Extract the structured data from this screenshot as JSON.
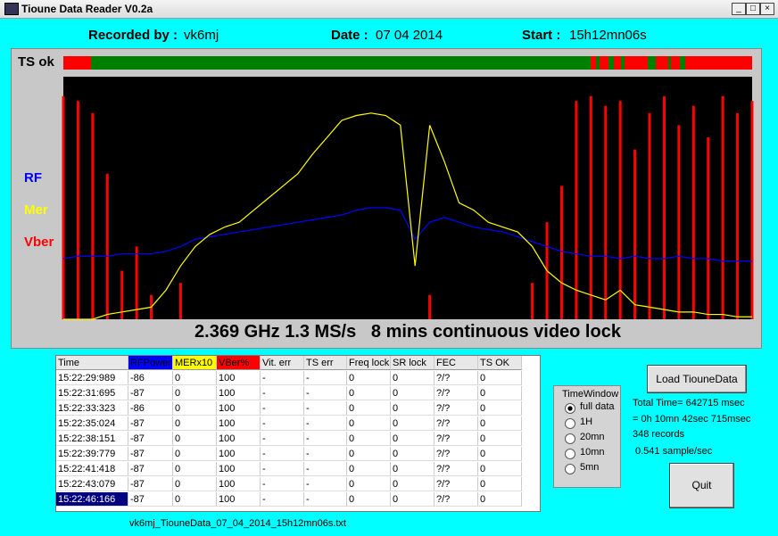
{
  "window": {
    "title": "Tioune Data Reader V0.2a"
  },
  "header": {
    "recorded_by_label": "Recorded by :",
    "recorded_by": "vk6mj",
    "date_label": "Date :",
    "date": "07 04 2014",
    "start_label": "Start :",
    "start": "15h12mn06s"
  },
  "graph": {
    "ts_label": "TS ok",
    "series": [
      {
        "name": "RF",
        "color": "#0000ff",
        "values": [
          25,
          26,
          26,
          26,
          27,
          27,
          27,
          28,
          30,
          33,
          34,
          35,
          36,
          37,
          38,
          39,
          40,
          41,
          42,
          43,
          45,
          46,
          46,
          45,
          33,
          40,
          42,
          40,
          38,
          37,
          36,
          34,
          32,
          30,
          28,
          27,
          26,
          26,
          25,
          26,
          25,
          25,
          26,
          25,
          25,
          24,
          24,
          24
        ]
      },
      {
        "name": "Mer",
        "color": "#ffff00",
        "values": [
          0,
          0,
          0,
          2,
          3,
          4,
          5,
          12,
          22,
          30,
          35,
          38,
          40,
          45,
          50,
          55,
          60,
          68,
          75,
          82,
          84,
          85,
          84,
          80,
          22,
          80,
          65,
          48,
          45,
          40,
          38,
          36,
          30,
          20,
          15,
          12,
          10,
          8,
          12,
          6,
          5,
          4,
          3,
          3,
          2,
          2,
          1,
          1
        ]
      },
      {
        "name": "Vber",
        "color": "#ff0000",
        "values": [
          92,
          90,
          85,
          60,
          20,
          30,
          10,
          0,
          15,
          0,
          0,
          0,
          0,
          0,
          0,
          0,
          0,
          0,
          0,
          0,
          0,
          0,
          0,
          0,
          0,
          10,
          0,
          0,
          0,
          0,
          0,
          0,
          15,
          40,
          55,
          90,
          92,
          88,
          90,
          70,
          85,
          92,
          80,
          88,
          75,
          92,
          85,
          90
        ]
      }
    ],
    "caption": "2.369 GHz 1.3 MS/s   8 mins continuous video lock"
  },
  "table": {
    "columns": [
      "Time",
      "RFPower",
      "MERx10",
      "VBer%",
      "Vit. err",
      "TS err",
      "Freq lock",
      "SR lock",
      "FEC",
      "TS OK"
    ],
    "rows": [
      [
        "15:22:29:989",
        "-86",
        "0",
        "100",
        "-",
        "-",
        "0",
        "0",
        "?/?",
        "0"
      ],
      [
        "15:22:31:695",
        "-87",
        "0",
        "100",
        "-",
        "-",
        "0",
        "0",
        "?/?",
        "0"
      ],
      [
        "15:22:33:323",
        "-86",
        "0",
        "100",
        "-",
        "-",
        "0",
        "0",
        "?/?",
        "0"
      ],
      [
        "15:22:35:024",
        "-87",
        "0",
        "100",
        "-",
        "-",
        "0",
        "0",
        "?/?",
        "0"
      ],
      [
        "15:22:38:151",
        "-87",
        "0",
        "100",
        "-",
        "-",
        "0",
        "0",
        "?/?",
        "0"
      ],
      [
        "15:22:39:779",
        "-87",
        "0",
        "100",
        "-",
        "-",
        "0",
        "0",
        "?/?",
        "0"
      ],
      [
        "15:22:41:418",
        "-87",
        "0",
        "100",
        "-",
        "-",
        "0",
        "0",
        "?/?",
        "0"
      ],
      [
        "15:22:43:079",
        "-87",
        "0",
        "100",
        "-",
        "-",
        "0",
        "0",
        "?/?",
        "0"
      ],
      [
        "15:22:46:166",
        "-87",
        "0",
        "100",
        "-",
        "-",
        "0",
        "0",
        "?/?",
        "0"
      ]
    ],
    "selected_row": 8
  },
  "file_name": "vk6mj_TiouneData_07_04_2014_15h12mn06s.txt",
  "time_window": {
    "title": "TimeWindow",
    "options": [
      "full data",
      "1H",
      "20mn",
      "10mn",
      "5mn"
    ],
    "selected": 0
  },
  "buttons": {
    "load": "Load TiouneData",
    "quit": "Quit"
  },
  "stats": {
    "total_time": "Total Time= 642715 msec",
    "breakdown": "= 0h 10mn 42sec 715msec",
    "records": "348 records",
    "rate": "0.541 sample/sec"
  }
}
